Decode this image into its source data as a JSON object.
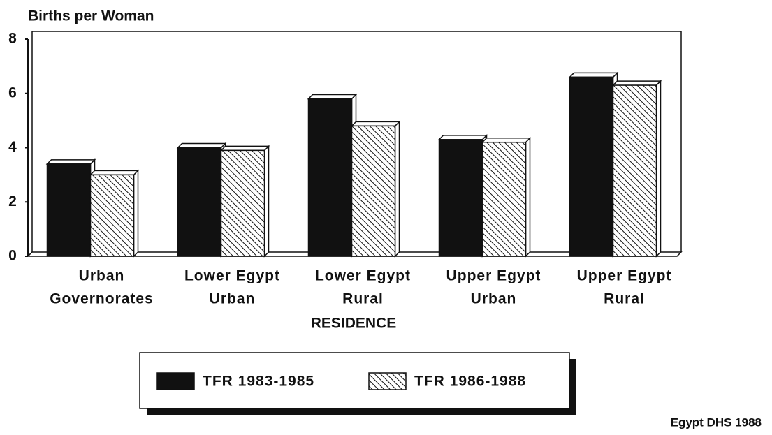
{
  "chart_data": {
    "type": "bar",
    "y_axis_label": "Births per Woman",
    "x_axis_label": "RESIDENCE",
    "source": "Egypt DHS 1988",
    "categories": [
      [
        "Urban",
        "Governorates"
      ],
      [
        "Lower Egypt",
        "Urban"
      ],
      [
        "Lower Egypt",
        "Rural"
      ],
      [
        "Upper Egypt",
        "Urban"
      ],
      [
        "Upper Egypt",
        "Rural"
      ]
    ],
    "series": [
      {
        "name": "TFR 1983-1985",
        "color": "#111111",
        "fill": "solid",
        "values": [
          3.4,
          4.0,
          5.8,
          4.3,
          6.6
        ]
      },
      {
        "name": "TFR 1986-1988",
        "color": "#111111",
        "fill": "hatch",
        "values": [
          3.0,
          3.9,
          4.8,
          4.2,
          6.3
        ]
      }
    ],
    "ylim": [
      0,
      8
    ],
    "yticks": [
      0,
      2,
      4,
      6,
      8
    ],
    "grid": false
  }
}
